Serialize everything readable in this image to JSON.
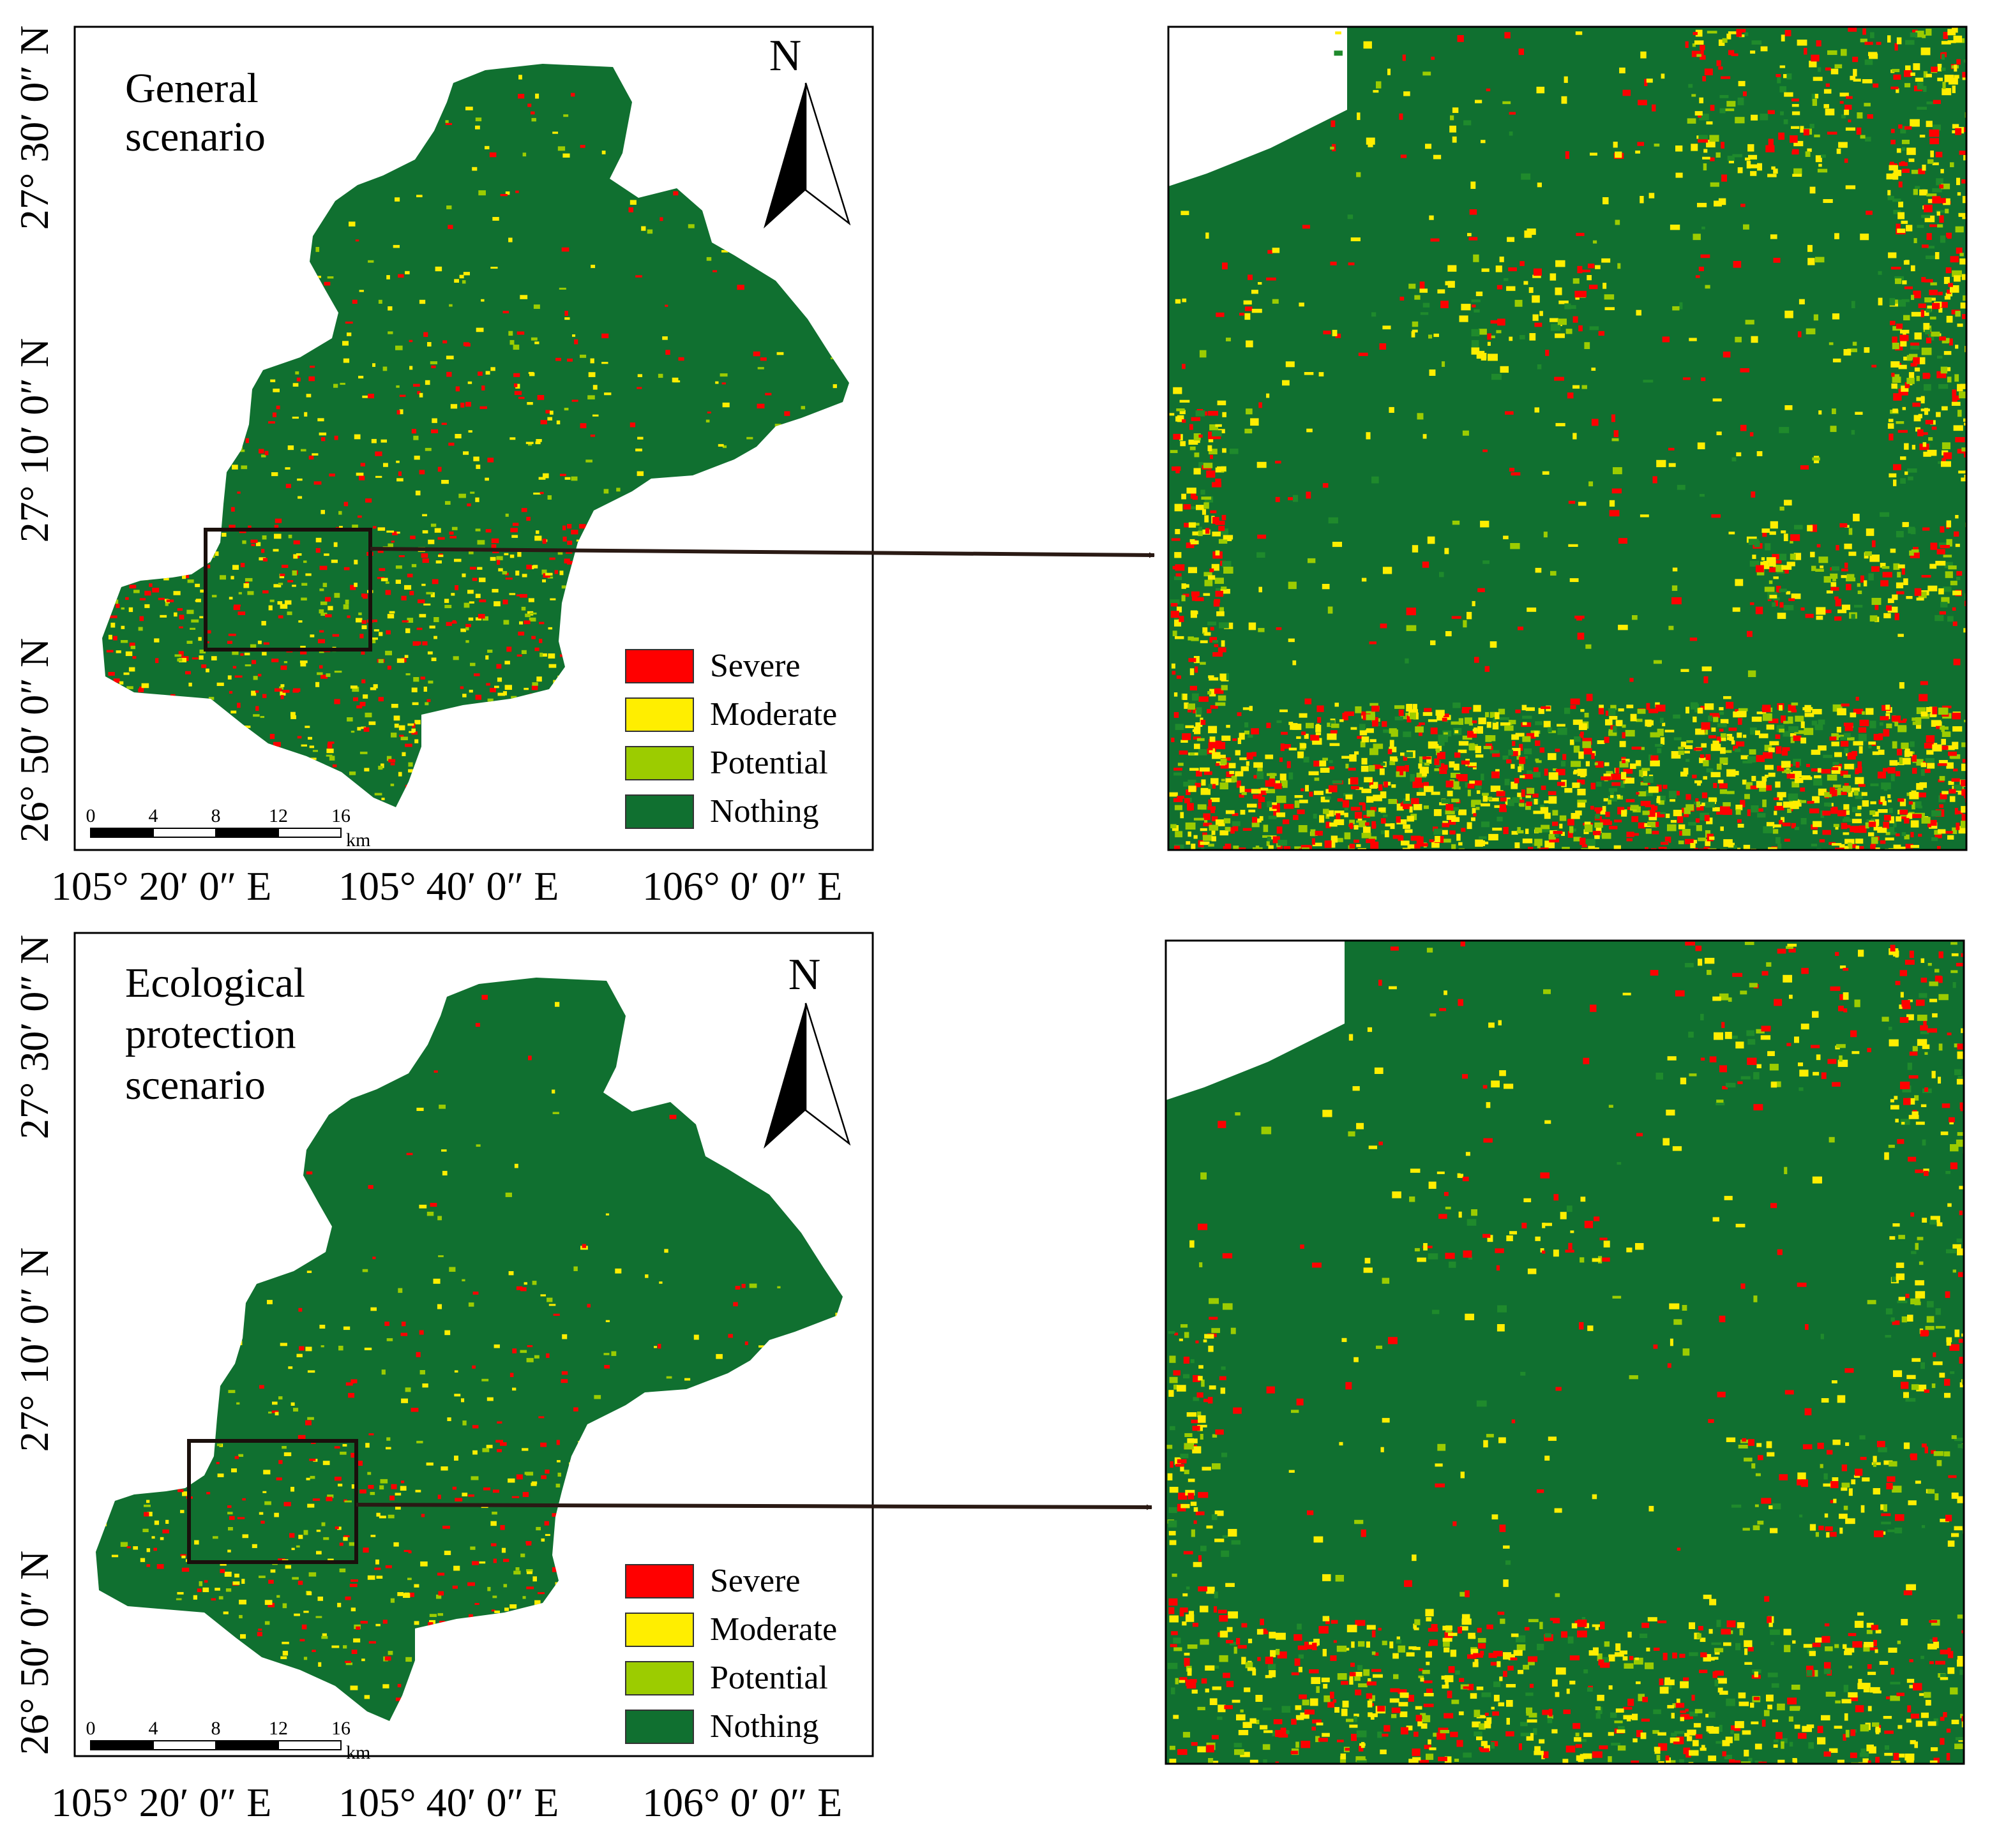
{
  "colors": {
    "severe": "#ff0000",
    "moderate": "#ffee00",
    "potential": "#9ccc00",
    "nothing": "#107030",
    "nothing_light": "#1f8a2c",
    "frame": "#000000",
    "arrow": "#2a1a14"
  },
  "axes": {
    "x_labels": [
      "105° 20′ 0″ E",
      "105° 40′ 0″ E",
      "106° 0′ 0″ E"
    ],
    "y_labels": [
      "27° 30′ 0″ N",
      "27° 10′ 0″ N",
      "26° 50′ 0″ N"
    ]
  },
  "north_arrow": "N",
  "scale_bar": {
    "ticks": [
      "0",
      "4",
      "8",
      "12",
      "16"
    ],
    "unit": "km"
  },
  "legend": [
    "Severe",
    "Moderate",
    "Potential",
    "Nothing"
  ],
  "panels": [
    {
      "scenario_lines": [
        "General",
        "scenario"
      ],
      "pattern_density": 1.0
    },
    {
      "scenario_lines": [
        "Ecological",
        "protection",
        "scenario"
      ],
      "pattern_density": 0.55
    }
  ]
}
